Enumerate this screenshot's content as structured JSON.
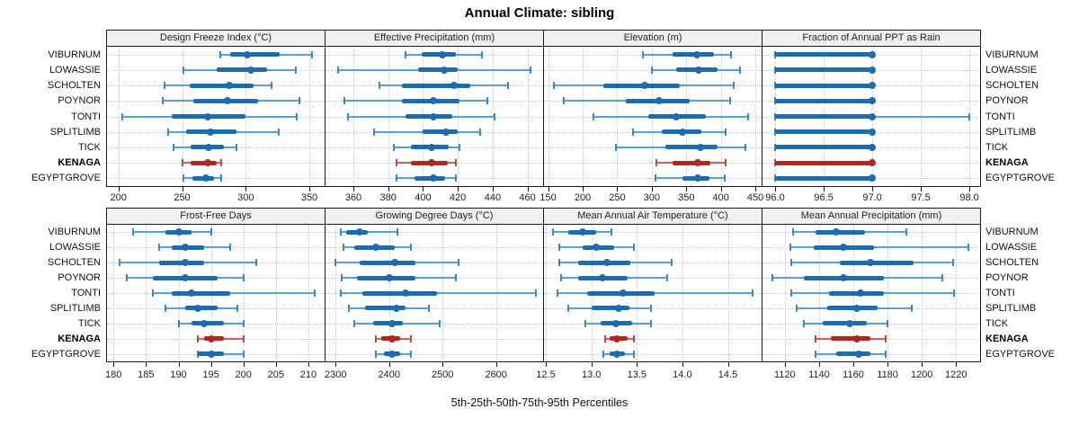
{
  "title": "Annual Climate: sibling",
  "x_axis_title": "5th-25th-50th-75th-95th Percentiles",
  "sites": [
    "VIBURNUM",
    "LOWASSIE",
    "SCHOLTEN",
    "POYNOR",
    "TONTI",
    "SPLITLIMB",
    "TICK",
    "KENAGA",
    "EGYPTGROVE"
  ],
  "highlight_site": "KENAGA",
  "colors": {
    "series_main": "#1b6cb1",
    "series_whisker": "#5b9fd4",
    "series_cap": "#3a87c4",
    "highlight_main": "#ae2921",
    "highlight_whisker": "#c9655c",
    "highlight_cap": "#b94a42",
    "strip_bg": "#f0f0f0",
    "gridline": "#c4c4c4",
    "panel_border": "#1a1a1a"
  },
  "chart_data": {
    "type": "interval-dotplot-trellis",
    "statistic": "5th-25th-50th-75th-95th percentiles per site",
    "legend_position": "none",
    "grid": "dotted",
    "rows_order_top_to_bottom": [
      "VIBURNUM",
      "LOWASSIE",
      "SCHOLTEN",
      "POYNOR",
      "TONTI",
      "SPLITLIMB",
      "TICK",
      "KENAGA",
      "EGYPTGROVE"
    ],
    "panels": [
      {
        "title": "Design Freeze Index (°C)",
        "grid_pos": {
          "row": 0,
          "col": 0
        },
        "xlim": [
          191,
          362
        ],
        "ticks": [
          200,
          250,
          300,
          350
        ],
        "tick_labels": [
          "200",
          "250",
          "300",
          "350"
        ],
        "values": [
          [
            280,
            288,
            301,
            327,
            352
          ],
          [
            251,
            277,
            304,
            317,
            339
          ],
          [
            236,
            256,
            287,
            306,
            320
          ],
          [
            235,
            259,
            286,
            310,
            342
          ],
          [
            203,
            242,
            270,
            300,
            340
          ],
          [
            239,
            253,
            272,
            293,
            326
          ],
          [
            243,
            257,
            271,
            283,
            293
          ],
          [
            250,
            257,
            270,
            277,
            281
          ],
          [
            251,
            258,
            269,
            275,
            281
          ]
        ]
      },
      {
        "title": "Effective Precipitation (mm)",
        "grid_pos": {
          "row": 0,
          "col": 1
        },
        "xlim": [
          344,
          469
        ],
        "ticks": [
          360,
          380,
          400,
          420,
          440,
          460
        ],
        "tick_labels": [
          "360",
          "380",
          "400",
          "420",
          "440",
          "460"
        ],
        "values": [
          [
            390,
            399,
            411,
            419,
            434
          ],
          [
            351,
            397,
            412,
            420,
            462
          ],
          [
            375,
            388,
            418,
            427,
            449
          ],
          [
            355,
            388,
            406,
            421,
            437
          ],
          [
            357,
            390,
            406,
            417,
            441
          ],
          [
            372,
            400,
            413,
            420,
            433
          ],
          [
            383,
            393,
            405,
            415,
            421
          ],
          [
            385,
            393,
            405,
            414,
            419
          ],
          [
            385,
            395,
            406,
            413,
            419
          ]
        ]
      },
      {
        "title": "Elevation (m)",
        "grid_pos": {
          "row": 0,
          "col": 2
        },
        "xlim": [
          144,
          459
        ],
        "ticks": [
          150,
          200,
          250,
          300,
          350,
          400,
          450
        ],
        "tick_labels": [
          "150",
          "200",
          "250",
          "300",
          "350",
          "400",
          "450"
        ],
        "values": [
          [
            287,
            330,
            365,
            390,
            415
          ],
          [
            300,
            335,
            368,
            395,
            428
          ],
          [
            158,
            230,
            290,
            340,
            418
          ],
          [
            172,
            263,
            310,
            355,
            413
          ],
          [
            215,
            295,
            335,
            378,
            440
          ],
          [
            273,
            315,
            345,
            372,
            407
          ],
          [
            248,
            320,
            370,
            395,
            436
          ],
          [
            307,
            330,
            367,
            385,
            407
          ],
          [
            305,
            345,
            366,
            383,
            405
          ]
        ]
      },
      {
        "title": "Fraction of Annual PPT as Rain",
        "grid_pos": {
          "row": 0,
          "col": 3
        },
        "xlim": [
          95.87,
          98.11
        ],
        "ticks": [
          96.0,
          96.5,
          97.0,
          97.5,
          98.0
        ],
        "tick_labels": [
          "96.0",
          "96.5",
          "97.0",
          "97.5",
          "98.0"
        ],
        "values": [
          [
            96,
            96,
            97,
            97,
            97
          ],
          [
            96,
            96,
            97,
            97,
            97
          ],
          [
            96,
            96,
            97,
            97,
            97
          ],
          [
            96,
            96,
            97,
            97,
            97
          ],
          [
            96,
            96,
            97,
            97,
            98
          ],
          [
            96,
            96,
            97,
            97,
            97
          ],
          [
            96,
            96,
            97,
            97,
            97
          ],
          [
            96,
            96,
            97,
            97,
            97
          ],
          [
            96,
            96,
            97,
            97,
            97
          ]
        ]
      },
      {
        "title": "Frost-Free Days",
        "grid_pos": {
          "row": 1,
          "col": 0
        },
        "xlim": [
          179,
          212.5
        ],
        "ticks": [
          180,
          185,
          190,
          195,
          200,
          205,
          210
        ],
        "tick_labels": [
          "180",
          "185",
          "190",
          "195",
          "200",
          "205",
          "210"
        ],
        "values": [
          [
            183,
            188,
            190,
            192,
            195
          ],
          [
            187,
            189,
            191,
            194,
            198
          ],
          [
            181,
            187,
            191,
            194,
            202
          ],
          [
            182,
            186,
            191,
            196,
            200
          ],
          [
            186,
            189,
            192,
            198,
            211
          ],
          [
            188,
            191,
            193,
            196,
            199
          ],
          [
            190,
            192,
            194,
            197,
            200
          ],
          [
            193,
            194,
            195,
            197,
            200
          ],
          [
            193,
            193,
            195,
            197,
            200
          ]
        ]
      },
      {
        "title": "Growing Degree Days (°C)",
        "grid_pos": {
          "row": 1,
          "col": 1
        },
        "xlim": [
          2281,
          2688
        ],
        "ticks": [
          2300,
          2400,
          2500,
          2600
        ],
        "tick_labels": [
          "2300",
          "2400",
          "2500",
          "2600"
        ],
        "values": [
          [
            2310,
            2320,
            2345,
            2360,
            2415
          ],
          [
            2315,
            2335,
            2375,
            2410,
            2440
          ],
          [
            2300,
            2345,
            2410,
            2450,
            2530
          ],
          [
            2312,
            2340,
            2400,
            2450,
            2525
          ],
          [
            2310,
            2350,
            2430,
            2490,
            2675
          ],
          [
            2325,
            2355,
            2413,
            2430,
            2475
          ],
          [
            2335,
            2370,
            2405,
            2425,
            2495
          ],
          [
            2375,
            2385,
            2405,
            2420,
            2440
          ],
          [
            2375,
            2390,
            2405,
            2420,
            2440
          ]
        ]
      },
      {
        "title": "Mean Annual Air Temperature (°C)",
        "grid_pos": {
          "row": 1,
          "col": 2
        },
        "xlim": [
          12.48,
          14.87
        ],
        "ticks": [
          12.5,
          13.0,
          13.5,
          14.0,
          14.5
        ],
        "tick_labels": [
          "12.5",
          "13.0",
          "13.5",
          "14.0",
          "14.5"
        ],
        "values": [
          [
            12.58,
            12.75,
            12.9,
            13.05,
            13.22
          ],
          [
            12.65,
            12.9,
            13.05,
            13.25,
            13.47
          ],
          [
            12.65,
            12.85,
            13.17,
            13.43,
            13.88
          ],
          [
            12.67,
            12.85,
            13.12,
            13.4,
            13.83
          ],
          [
            12.63,
            12.95,
            13.35,
            13.7,
            14.77
          ],
          [
            12.75,
            13.0,
            13.3,
            13.42,
            13.65
          ],
          [
            12.93,
            13.1,
            13.27,
            13.45,
            13.65
          ],
          [
            13.15,
            13.2,
            13.28,
            13.4,
            13.47
          ],
          [
            13.13,
            13.2,
            13.28,
            13.37,
            13.47
          ]
        ]
      },
      {
        "title": "Mean Annual Precipitation (mm)",
        "grid_pos": {
          "row": 1,
          "col": 3
        },
        "xlim": [
          1107,
          1234
        ],
        "ticks": [
          1120,
          1140,
          1160,
          1180,
          1200,
          1220
        ],
        "tick_labels": [
          "1120",
          "1140",
          "1160",
          "1180",
          "1200",
          "1220"
        ],
        "values": [
          [
            1125,
            1138,
            1150,
            1167,
            1191
          ],
          [
            1123,
            1137,
            1154,
            1172,
            1227
          ],
          [
            1124,
            1152,
            1170,
            1195,
            1218
          ],
          [
            1113,
            1131,
            1154,
            1178,
            1212
          ],
          [
            1124,
            1146,
            1164,
            1178,
            1219
          ],
          [
            1127,
            1145,
            1162,
            1174,
            1194
          ],
          [
            1131,
            1142,
            1158,
            1168,
            1180
          ],
          [
            1138,
            1147,
            1162,
            1170,
            1179
          ],
          [
            1138,
            1150,
            1163,
            1170,
            1179
          ]
        ]
      }
    ]
  }
}
